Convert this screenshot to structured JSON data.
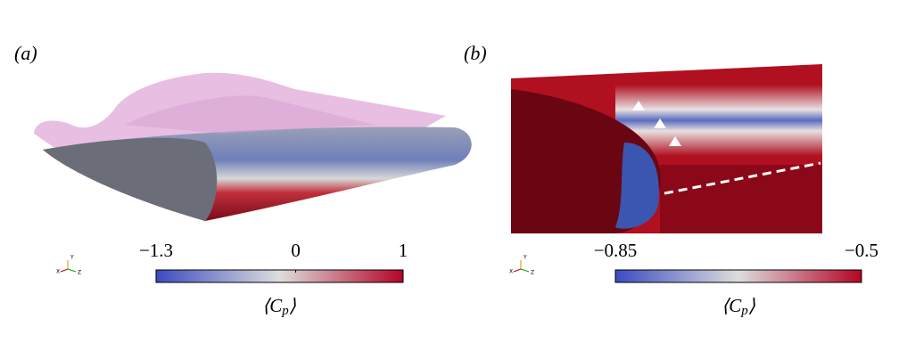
{
  "panels": [
    {
      "label": "(a)",
      "colorbar": {
        "lim": [
          -1.3,
          1
        ],
        "ticks": [
          {
            "value": -1.3,
            "label": "−1.3"
          },
          0,
          1
        ],
        "title": [
          "⟨C",
          "p",
          "⟩"
        ]
      },
      "triad": [
        "Y",
        "X",
        "Z"
      ]
    },
    {
      "label": "(b)",
      "colorbar": {
        "lim": [
          -0.85,
          -0.5
        ],
        "ticks": [
          {
            "value": -0.85,
            "label": "−0.85"
          },
          {
            "value": -0.5,
            "label": "−0.5"
          }
        ],
        "title": [
          "⟨C",
          "p",
          "⟩"
        ]
      },
      "triad": [
        "Y",
        "X",
        "Z"
      ]
    }
  ]
}
